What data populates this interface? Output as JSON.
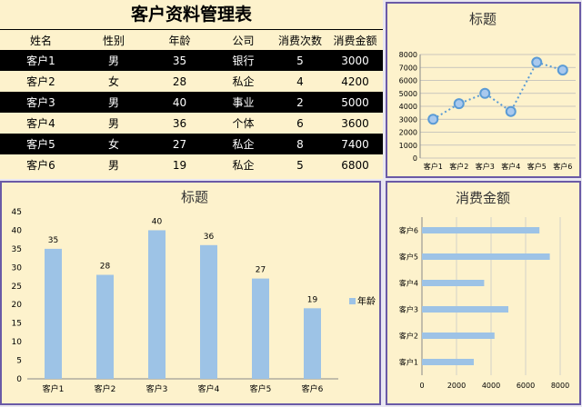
{
  "table": {
    "title": "客户资料管理表",
    "headers": [
      "姓名",
      "性别",
      "年龄",
      "公司",
      "消费次数",
      "消费金额"
    ],
    "rows": [
      [
        "客户1",
        "男",
        "35",
        "银行",
        "5",
        "3000"
      ],
      [
        "客户2",
        "女",
        "28",
        "私企",
        "4",
        "4200"
      ],
      [
        "客户3",
        "男",
        "40",
        "事业",
        "2",
        "5000"
      ],
      [
        "客户4",
        "男",
        "36",
        "个体",
        "6",
        "3600"
      ],
      [
        "客户5",
        "女",
        "27",
        "私企",
        "8",
        "7400"
      ],
      [
        "客户6",
        "男",
        "19",
        "私企",
        "5",
        "6800"
      ]
    ]
  },
  "colors": {
    "panel_bg": "#fdf2cc",
    "border": "#6a5aa6",
    "bar": "#9dc3e6",
    "line": "#5b9bd5",
    "dark_row": "#000000"
  },
  "chart_data": [
    {
      "type": "line",
      "title": "标题",
      "categories": [
        "客户1",
        "客户2",
        "客户3",
        "客户4",
        "客户5",
        "客户6"
      ],
      "series": [
        {
          "values": [
            3000,
            4200,
            5000,
            3600,
            7400,
            6800
          ]
        }
      ],
      "ylim": [
        0,
        8000
      ],
      "yticks": [
        "0",
        "1000",
        "2000",
        "3000",
        "4000",
        "5000",
        "6000",
        "7000",
        "8000"
      ],
      "grid": true,
      "line_style": "dotted"
    },
    {
      "type": "bar",
      "title": "标题",
      "categories": [
        "客户1",
        "客户2",
        "客户3",
        "客户4",
        "客户5",
        "客户6"
      ],
      "series": [
        {
          "name": "年龄",
          "values": [
            35,
            28,
            40,
            36,
            27,
            19
          ]
        }
      ],
      "ylim": [
        0,
        45
      ],
      "yticks": [
        "0",
        "5",
        "10",
        "15",
        "20",
        "25",
        "30",
        "35",
        "40",
        "45"
      ],
      "legend": "right",
      "data_labels": true
    },
    {
      "type": "bar",
      "orientation": "horizontal",
      "title": "消费金额",
      "categories": [
        "客户1",
        "客户2",
        "客户3",
        "客户4",
        "客户5",
        "客户6"
      ],
      "series": [
        {
          "values": [
            3000,
            4200,
            5000,
            3600,
            7400,
            6800
          ]
        }
      ],
      "xlim": [
        0,
        8000
      ],
      "xticks": [
        "0",
        "2000",
        "4000",
        "6000",
        "8000"
      ],
      "grid": true
    }
  ]
}
